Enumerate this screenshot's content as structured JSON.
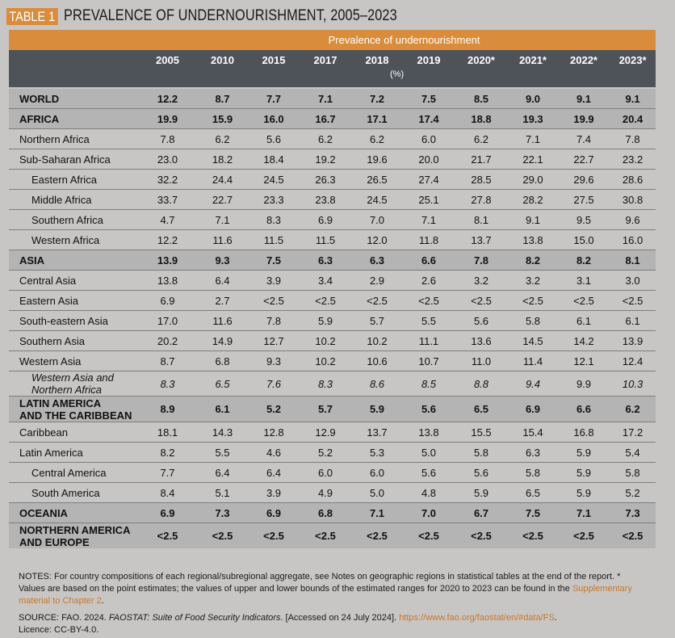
{
  "title": {
    "tag": "TABLE 1",
    "text": "PREVALENCE OF UNDERNOURISHMENT, 2005–2023"
  },
  "table": {
    "band_header": "Prevalence of undernourishment",
    "years": [
      "2005",
      "2010",
      "2015",
      "2017",
      "2018",
      "2019",
      "2020*",
      "2021*",
      "2022*",
      "2023*"
    ],
    "unit": "(%)",
    "rows": [
      {
        "label": "WORLD",
        "style": "bold",
        "values": [
          "12.2",
          "8.7",
          "7.7",
          "7.1",
          "7.2",
          "7.5",
          "8.5",
          "9.0",
          "9.1",
          "9.1"
        ]
      },
      {
        "label": "AFRICA",
        "style": "bold",
        "values": [
          "19.9",
          "15.9",
          "16.0",
          "16.7",
          "17.1",
          "17.4",
          "18.8",
          "19.3",
          "19.9",
          "20.4"
        ]
      },
      {
        "label": "Northern Africa",
        "style": "normal",
        "values": [
          "7.8",
          "6.2",
          "5.6",
          "6.2",
          "6.2",
          "6.0",
          "6.2",
          "7.1",
          "7.4",
          "7.8"
        ]
      },
      {
        "label": "Sub-Saharan Africa",
        "style": "normal",
        "values": [
          "23.0",
          "18.2",
          "18.4",
          "19.2",
          "19.6",
          "20.0",
          "21.7",
          "22.1",
          "22.7",
          "23.2"
        ]
      },
      {
        "label": "Eastern Africa",
        "style": "sub",
        "values": [
          "32.2",
          "24.4",
          "24.5",
          "26.3",
          "26.5",
          "27.4",
          "28.5",
          "29.0",
          "29.6",
          "28.6"
        ]
      },
      {
        "label": "Middle Africa",
        "style": "sub",
        "values": [
          "33.7",
          "22.7",
          "23.3",
          "23.8",
          "24.5",
          "25.1",
          "27.8",
          "28.2",
          "27.5",
          "30.8"
        ]
      },
      {
        "label": "Southern Africa",
        "style": "sub",
        "values": [
          "4.7",
          "7.1",
          "8.3",
          "6.9",
          "7.0",
          "7.1",
          "8.1",
          "9.1",
          "9.5",
          "9.6"
        ]
      },
      {
        "label": "Western Africa",
        "style": "sub",
        "values": [
          "12.2",
          "11.6",
          "11.5",
          "11.5",
          "12.0",
          "11.8",
          "13.7",
          "13.8",
          "15.0",
          "16.0"
        ]
      },
      {
        "label": "ASIA",
        "style": "bold",
        "values": [
          "13.9",
          "9.3",
          "7.5",
          "6.3",
          "6.3",
          "6.6",
          "7.8",
          "8.2",
          "8.2",
          "8.1"
        ]
      },
      {
        "label": "Central Asia",
        "style": "normal",
        "values": [
          "13.8",
          "6.4",
          "3.9",
          "3.4",
          "2.9",
          "2.6",
          "3.2",
          "3.2",
          "3.1",
          "3.0"
        ]
      },
      {
        "label": "Eastern Asia",
        "style": "normal",
        "values": [
          "6.9",
          "2.7",
          "<2.5",
          "<2.5",
          "<2.5",
          "<2.5",
          "<2.5",
          "<2.5",
          "<2.5",
          "<2.5"
        ]
      },
      {
        "label": "South-eastern Asia",
        "style": "normal",
        "values": [
          "17.0",
          "11.6",
          "7.8",
          "5.9",
          "5.7",
          "5.5",
          "5.6",
          "5.8",
          "6.1",
          "6.1"
        ]
      },
      {
        "label": "Southern Asia",
        "style": "normal",
        "values": [
          "20.2",
          "14.9",
          "12.7",
          "10.2",
          "10.2",
          "11.1",
          "13.6",
          "14.5",
          "14.2",
          "13.9"
        ]
      },
      {
        "label": "Western Asia",
        "style": "normal",
        "values": [
          "8.7",
          "6.8",
          "9.3",
          "10.2",
          "10.6",
          "10.7",
          "11.0",
          "11.4",
          "12.1",
          "12.4"
        ]
      },
      {
        "label_lines": [
          "Western Asia and",
          "Northern Africa"
        ],
        "style": "italic",
        "values": [
          "8.3",
          "6.5",
          "7.6",
          "8.3",
          "8.6",
          "8.5",
          "8.8",
          "9.4",
          "9.9",
          "10.3"
        ],
        "italic_values": [
          true,
          true,
          true,
          true,
          true,
          true,
          true,
          true,
          false,
          true
        ]
      },
      {
        "label_lines": [
          "LATIN AMERICA",
          "AND THE CARIBBEAN"
        ],
        "style": "bold",
        "values": [
          "8.9",
          "6.1",
          "5.2",
          "5.7",
          "5.9",
          "5.6",
          "6.5",
          "6.9",
          "6.6",
          "6.2"
        ]
      },
      {
        "label": "Caribbean",
        "style": "normal",
        "values": [
          "18.1",
          "14.3",
          "12.8",
          "12.9",
          "13.7",
          "13.8",
          "15.5",
          "15.4",
          "16.8",
          "17.2"
        ]
      },
      {
        "label": "Latin America",
        "style": "normal",
        "values": [
          "8.2",
          "5.5",
          "4.6",
          "5.2",
          "5.3",
          "5.0",
          "5.8",
          "6.3",
          "5.9",
          "5.4"
        ]
      },
      {
        "label": "Central America",
        "style": "sub",
        "values": [
          "7.7",
          "6.4",
          "6.4",
          "6.0",
          "6.0",
          "5.6",
          "5.6",
          "5.8",
          "5.9",
          "5.8"
        ]
      },
      {
        "label": "South America",
        "style": "sub",
        "values": [
          "8.4",
          "5.1",
          "3.9",
          "4.9",
          "5.0",
          "4.8",
          "5.9",
          "6.5",
          "5.9",
          "5.2"
        ]
      },
      {
        "label": "OCEANIA",
        "style": "bold",
        "values": [
          "6.9",
          "7.3",
          "6.9",
          "6.8",
          "7.1",
          "7.0",
          "6.7",
          "7.5",
          "7.1",
          "7.3"
        ]
      },
      {
        "label_lines": [
          "NORTHERN AMERICA",
          "AND EUROPE"
        ],
        "style": "bold",
        "values": [
          "<2.5",
          "<2.5",
          "<2.5",
          "<2.5",
          "<2.5",
          "<2.5",
          "<2.5",
          "<2.5",
          "<2.5",
          "<2.5"
        ]
      }
    ]
  },
  "notes": {
    "notes_prefix": "NOTES: For country compositions of each regional/subregional aggregate, see Notes on geographic regions in statistical tables at the end of the report. * Values are based on the point estimates; the values of upper and lower bounds of the estimated ranges for 2020 to 2023 can be found in the ",
    "notes_link": "Supplementary material to Chapter 2",
    "notes_suffix": ".",
    "source_prefix": "SOURCE: FAO. 2024. ",
    "source_title": "FAOSTAT: Suite of Food Security Indicators",
    "source_mid": ". [Accessed on 24 July 2024]. ",
    "source_link": "https://www.fao.org/faostat/en/#data/FS",
    "source_suffix": ".",
    "licence": "Licence: CC-BY-4.0."
  },
  "colors": {
    "accent": "#d98c3c",
    "header_dark": "#4e535a",
    "bold_row": "#b5b4b4",
    "background": "#c8c6c4",
    "link": "#c9762a"
  }
}
